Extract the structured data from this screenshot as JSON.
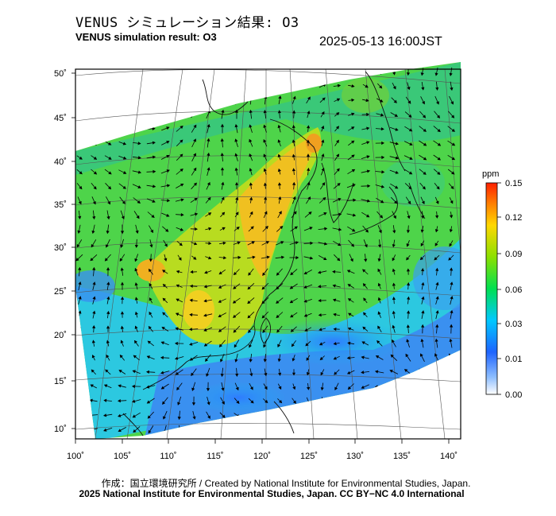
{
  "header": {
    "title_jp": "VENUS シミュレーション結果: O3",
    "title_en": "VENUS simulation result: O3",
    "timestamp": "2025-05-13 16:00JST"
  },
  "map": {
    "lat_labels": [
      "50˚",
      "45˚",
      "40˚",
      "35˚",
      "30˚",
      "25˚",
      "20˚",
      "15˚",
      "10˚"
    ],
    "lon_labels": [
      "100˚",
      "105˚",
      "110˚",
      "115˚",
      "120˚",
      "125˚",
      "130˚",
      "135˚",
      "140˚"
    ],
    "background": "#ffffff"
  },
  "colorbar": {
    "unit": "ppm",
    "tick_labels": [
      "0.15",
      "0.12",
      "0.09",
      "0.06",
      "0.03",
      "0.01",
      "0.00"
    ],
    "colors": [
      "#ffffff",
      "#8fbfff",
      "#1e64ff",
      "#00c8ff",
      "#00e050",
      "#8ce000",
      "#ffd700",
      "#ff8000",
      "#ff2000"
    ]
  },
  "chart_data": {
    "type": "heatmap",
    "variable": "O3",
    "unit": "ppm",
    "xlabel": "",
    "ylabel": "",
    "xlim": [
      100,
      140
    ],
    "ylim": [
      10,
      50
    ],
    "color_scale": [
      0.0,
      0.01,
      0.03,
      0.06,
      0.09,
      0.12,
      0.15
    ]
  },
  "footer": {
    "credit_jp": "作成：国立環境研究所 / Created by National Institute for Environmental Studies, Japan.",
    "copyright": "2025 National Institute for Environmental Studies, Japan. CC BY−NC 4.0 International"
  }
}
